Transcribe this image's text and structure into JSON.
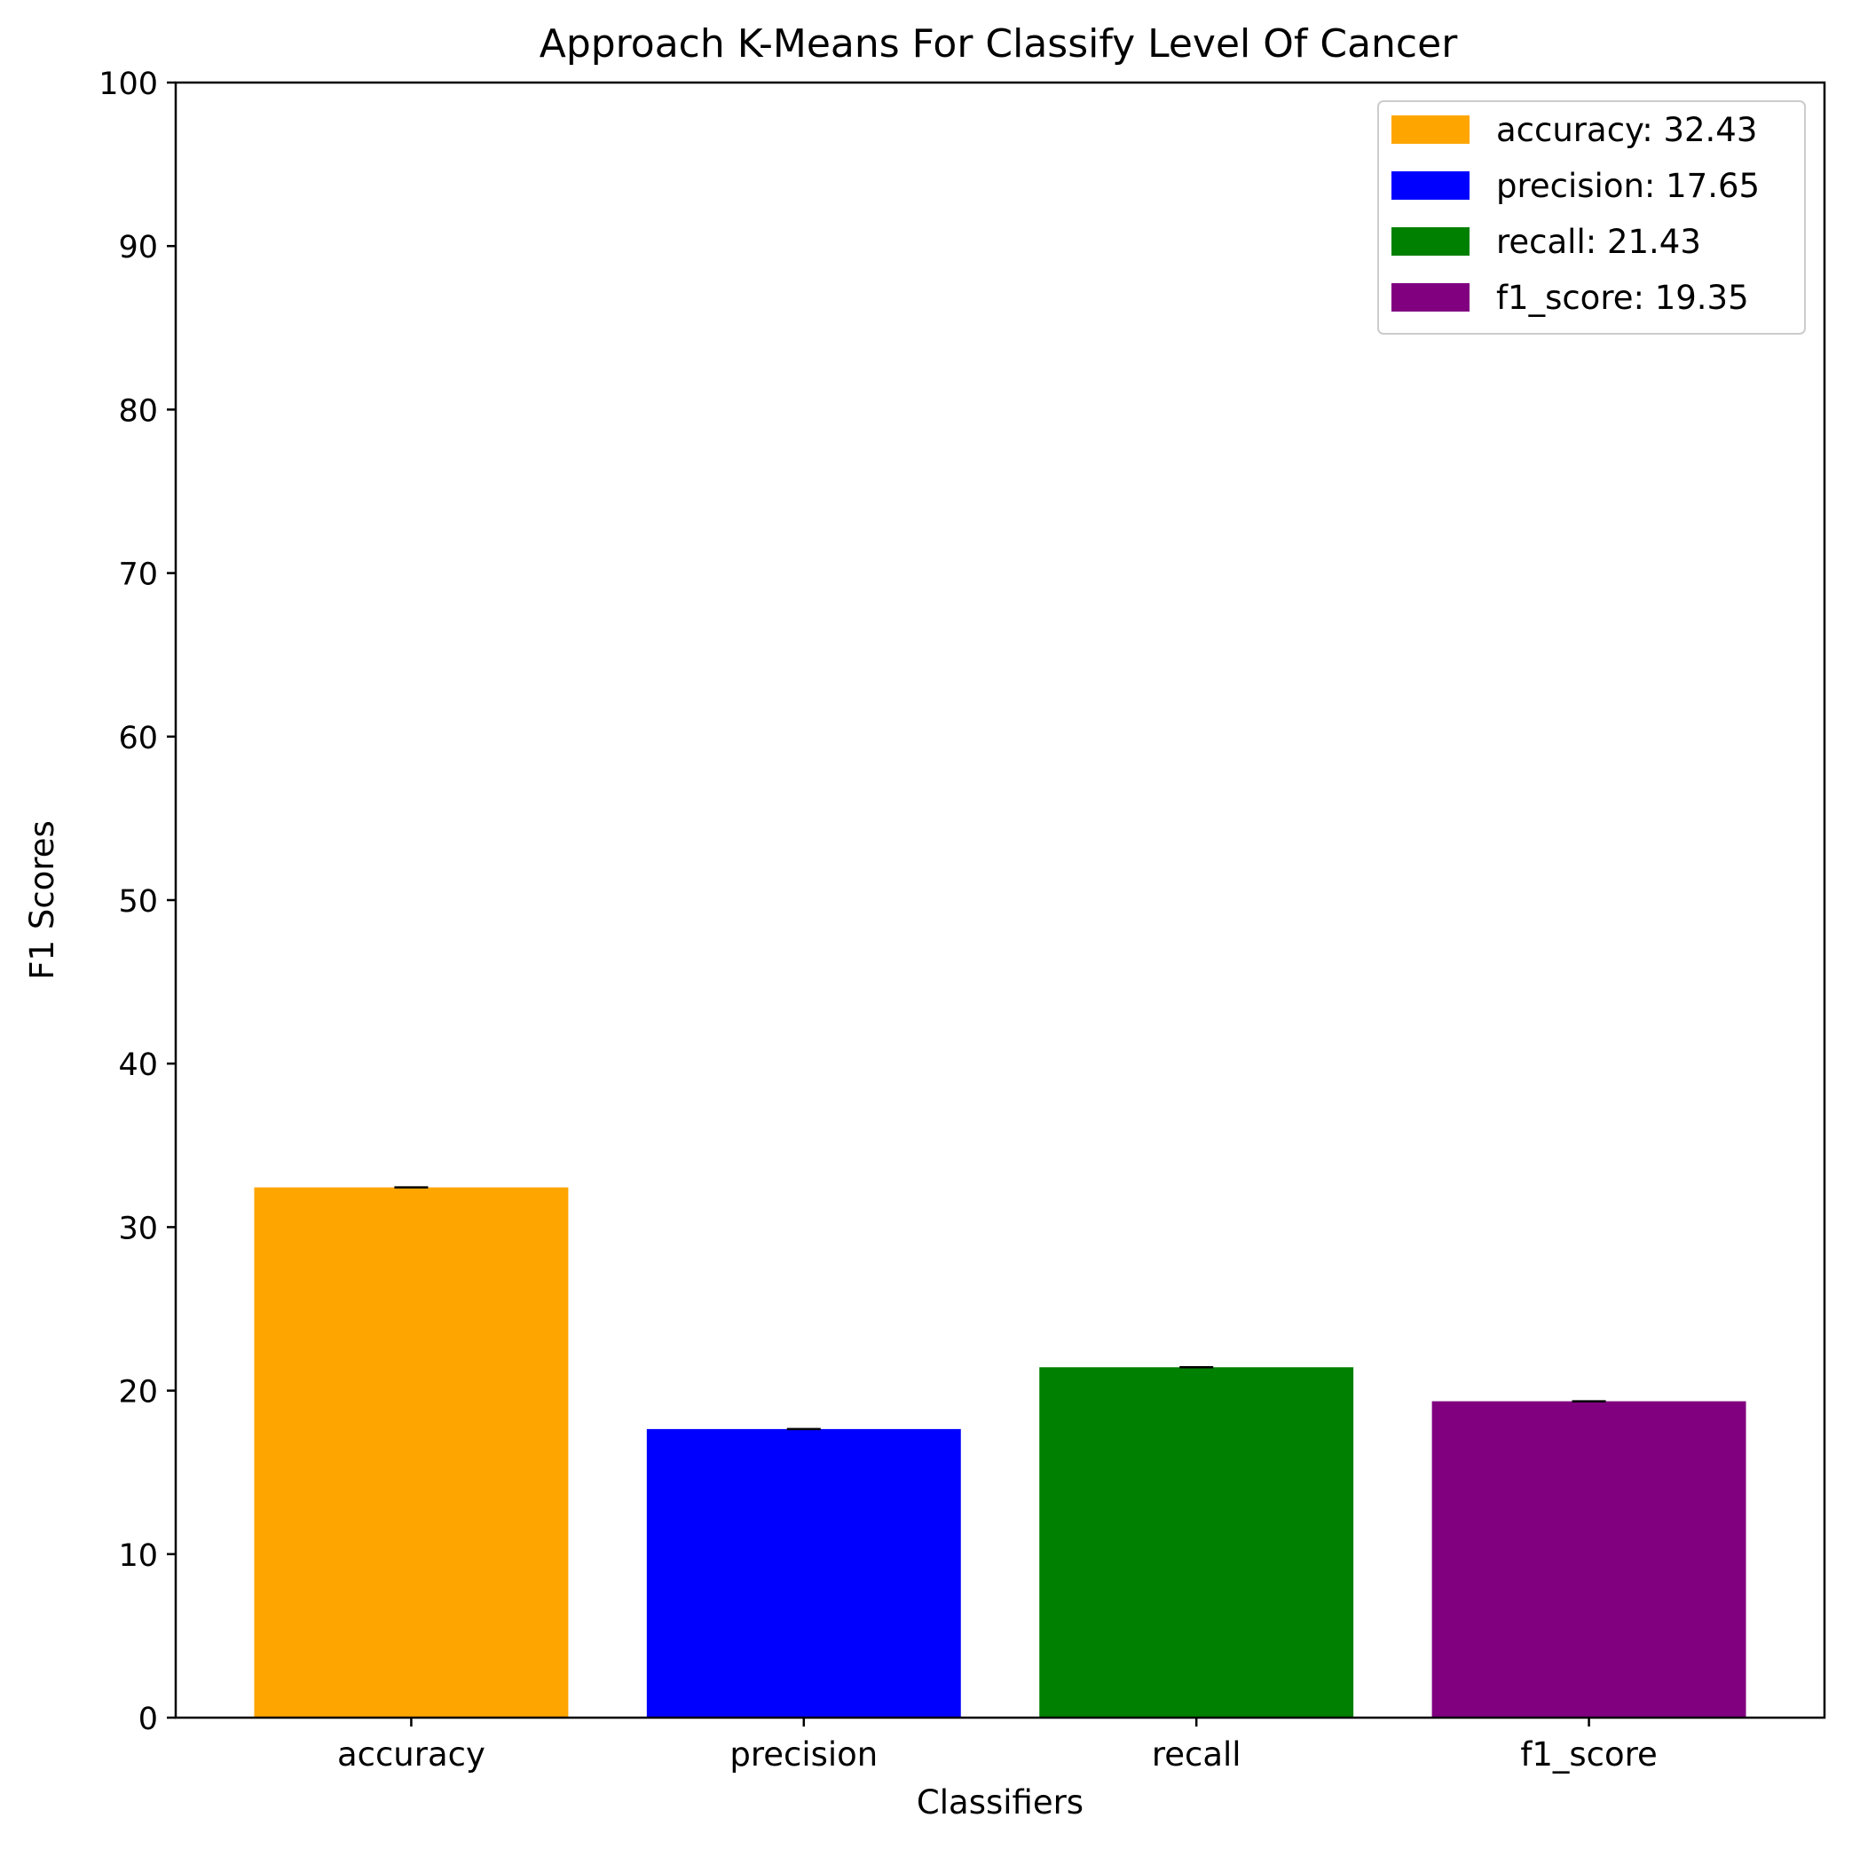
{
  "chart_data": {
    "type": "bar",
    "title": "Approach K-Means For Classify Level Of Cancer",
    "xlabel": "Classifiers",
    "ylabel": "F1 Scores",
    "categories": [
      "accuracy",
      "precision",
      "recall",
      "f1_score"
    ],
    "values": [
      32.43,
      17.65,
      21.43,
      19.35
    ],
    "colors": [
      "#ffa500",
      "#0000ff",
      "#008000",
      "#800080"
    ],
    "legend": [
      "accuracy: 32.43",
      "precision: 17.65",
      "recall: 21.43",
      "f1_score: 19.35"
    ],
    "legend_position": "top-right",
    "ylim": [
      0,
      100
    ],
    "yticks": [
      "0",
      "10",
      "20",
      "30",
      "40",
      "50",
      "60",
      "70",
      "80",
      "90",
      "100"
    ],
    "grid": false,
    "error_bars": true
  }
}
